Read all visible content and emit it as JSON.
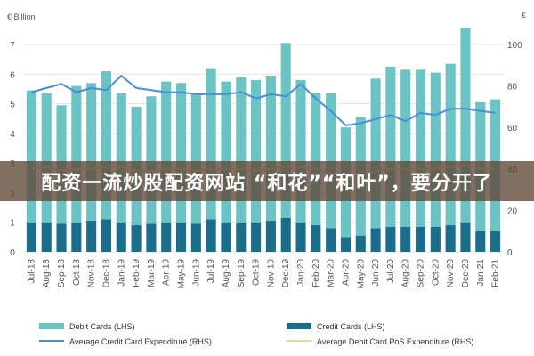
{
  "banner": {
    "text": "配资一流炒股配资网站 “和花”“和叶”，要分开了"
  },
  "chart_data": {
    "type": "bar",
    "categories": [
      "Jul-18",
      "Aug-18",
      "Sep-18",
      "Oct-18",
      "Nov-18",
      "Dec-18",
      "Jan-19",
      "Feb-19",
      "Mar-19",
      "Apr-19",
      "May-19",
      "Jun-19",
      "Jul-19",
      "Aug-19",
      "Sep-19",
      "Oct-19",
      "Nov-19",
      "Dec-19",
      "Jan-20",
      "Feb-20",
      "Mar-20",
      "Apr-20",
      "May-20",
      "Jun-20",
      "Jul-20",
      "Aug-20",
      "Sep-20",
      "Oct-20",
      "Nov-20",
      "Dec-20",
      "Jan-21",
      "Feb-21"
    ],
    "left_unit": "€ Billion",
    "right_unit": "€",
    "ylim_left": [
      0,
      7
    ],
    "ylim_right": [
      0,
      100
    ],
    "yticks_left": [
      0,
      1,
      2,
      3,
      4,
      5,
      6,
      7
    ],
    "yticks_right": [
      0,
      20,
      40,
      60,
      80,
      100
    ],
    "grid": true,
    "legend_position": "bottom",
    "series": [
      {
        "name": "Debit Cards (LHS)",
        "type": "bar",
        "axis": "left",
        "color": "#6cc3c3",
        "values": [
          4.45,
          4.35,
          4.0,
          4.6,
          4.65,
          5.0,
          4.35,
          4.0,
          4.3,
          4.75,
          4.7,
          4.4,
          5.1,
          4.75,
          4.9,
          4.8,
          4.9,
          5.9,
          4.8,
          4.45,
          4.55,
          3.7,
          4.0,
          5.05,
          5.4,
          5.3,
          5.3,
          5.2,
          5.45,
          6.55,
          4.35,
          4.45
        ]
      },
      {
        "name": "Credit Cards (LHS)",
        "type": "bar",
        "axis": "left",
        "color": "#1a6e8c",
        "values": [
          1.0,
          1.0,
          0.95,
          1.0,
          1.05,
          1.1,
          1.0,
          0.9,
          0.95,
          1.0,
          1.0,
          0.95,
          1.1,
          1.0,
          1.0,
          1.0,
          1.05,
          1.15,
          1.0,
          0.9,
          0.8,
          0.5,
          0.55,
          0.8,
          0.85,
          0.85,
          0.85,
          0.85,
          0.9,
          1.0,
          0.7,
          0.7
        ]
      },
      {
        "name": "Average Credit Card Expenditure (RHS)",
        "type": "line",
        "axis": "right",
        "color": "#4a8fd6",
        "values": [
          77,
          79,
          81,
          77,
          79,
          78,
          85,
          79,
          78,
          77,
          77,
          76,
          76,
          76,
          77,
          74,
          76,
          75,
          81,
          74,
          68,
          61,
          62,
          64,
          66,
          63,
          67,
          66,
          69,
          69,
          68,
          67
        ]
      },
      {
        "name": "Average Debit Card PoS Expenditure (RHS)",
        "type": "line",
        "axis": "right",
        "color": "#d9dd96",
        "values": [
          40,
          41,
          39,
          40,
          40,
          41,
          41,
          39,
          39,
          40,
          40,
          39,
          40,
          40,
          40,
          39,
          40,
          41,
          41,
          40,
          38,
          35,
          36,
          39,
          40,
          40,
          40,
          40,
          41,
          42,
          40,
          40
        ]
      }
    ]
  }
}
